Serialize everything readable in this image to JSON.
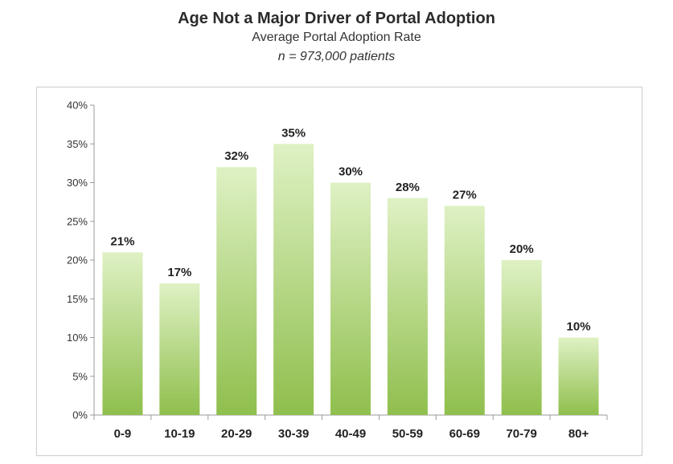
{
  "header": {
    "title": "Age Not a Major Driver of Portal Adoption",
    "subtitle": "Average Portal Adoption Rate",
    "note": "n = 973,000 patients"
  },
  "chart_data": {
    "type": "bar",
    "title": "Age Not a Major Driver of Portal Adoption",
    "subtitle": "Average Portal Adoption Rate",
    "xlabel": "",
    "ylabel": "",
    "categories": [
      "0-9",
      "10-19",
      "20-29",
      "30-39",
      "40-49",
      "50-59",
      "60-69",
      "70-79",
      "80+"
    ],
    "values": [
      21,
      17,
      32,
      35,
      30,
      28,
      27,
      20,
      10
    ],
    "value_labels": [
      "21%",
      "17%",
      "32%",
      "35%",
      "30%",
      "28%",
      "27%",
      "20%",
      "10%"
    ],
    "ylim": [
      0,
      40
    ],
    "yticks": [
      0,
      5,
      10,
      15,
      20,
      25,
      30,
      35,
      40
    ],
    "ytick_labels": [
      "0%",
      "5%",
      "10%",
      "15%",
      "20%",
      "25%",
      "30%",
      "35%",
      "40%"
    ],
    "grid": false,
    "legend": "none",
    "colors": {
      "bar_top": "#dff1c4",
      "bar_bottom": "#8fbf4d",
      "axis": "#9a9a9a"
    }
  }
}
